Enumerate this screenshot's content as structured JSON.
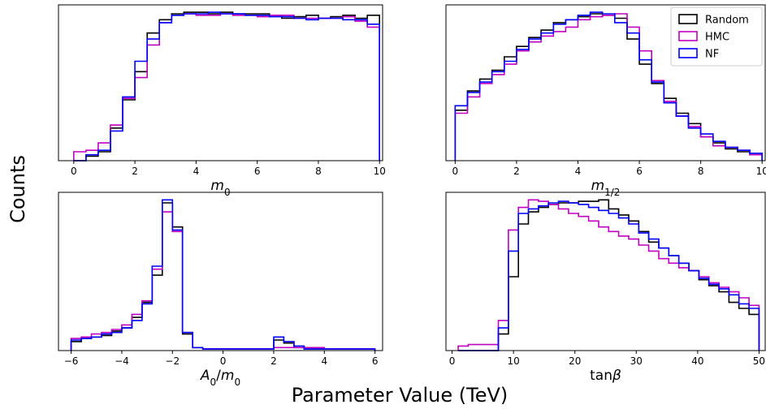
{
  "figure": {
    "ylabel": "Counts",
    "xlabel": "Parameter Value (TeV)"
  },
  "colors": {
    "Random": "#000000",
    "HMC": "#bf00bf",
    "NF": "#0000ff"
  },
  "legend": {
    "placement": "top-right",
    "entries": [
      "Random",
      "HMC",
      "NF"
    ]
  },
  "chart_data": [
    {
      "type": "histogram",
      "xlabel": "m0",
      "xlim": [
        -0.5,
        10.1
      ],
      "ylim": [
        0,
        1.0
      ],
      "xticks": [
        0,
        2,
        4,
        6,
        8,
        10
      ],
      "bin_edges": [
        0,
        0.4,
        0.8,
        1.2,
        1.6,
        2.0,
        2.4,
        2.8,
        3.2,
        3.6,
        4.0,
        4.4,
        4.8,
        5.2,
        5.6,
        6.0,
        6.4,
        6.8,
        7.2,
        7.6,
        8.0,
        8.4,
        8.8,
        9.2,
        9.6,
        10.0
      ],
      "series": [
        {
          "name": "Random",
          "values": [
            0.0,
            0.03,
            0.06,
            0.22,
            0.41,
            0.6,
            0.86,
            0.95,
            0.99,
            1.0,
            1.0,
            0.99,
            1.0,
            0.99,
            0.99,
            0.99,
            0.98,
            0.96,
            0.97,
            0.98,
            0.96,
            0.97,
            0.98,
            0.96,
            0.98
          ]
        },
        {
          "name": "HMC",
          "values": [
            0.06,
            0.07,
            0.12,
            0.24,
            0.42,
            0.56,
            0.78,
            0.93,
            0.98,
            0.99,
            0.98,
            0.98,
            0.99,
            0.98,
            0.98,
            0.97,
            0.98,
            0.98,
            0.96,
            0.96,
            0.96,
            0.96,
            0.97,
            0.94,
            0.9
          ]
        },
        {
          "name": "NF",
          "values": [
            0.0,
            0.04,
            0.07,
            0.2,
            0.43,
            0.67,
            0.82,
            0.93,
            0.98,
            0.99,
            0.99,
            1.0,
            0.99,
            0.99,
            0.98,
            0.98,
            0.97,
            0.97,
            0.96,
            0.95,
            0.96,
            0.96,
            0.95,
            0.95,
            0.92
          ]
        }
      ]
    },
    {
      "type": "histogram",
      "xlabel": "m1/2",
      "xlim": [
        -0.3,
        10.1
      ],
      "ylim": [
        0,
        1.0
      ],
      "xticks": [
        0,
        2,
        4,
        6,
        8,
        10
      ],
      "bin_edges": [
        0,
        0.4,
        0.8,
        1.2,
        1.6,
        2.0,
        2.4,
        2.8,
        3.2,
        3.6,
        4.0,
        4.4,
        4.8,
        5.2,
        5.6,
        6.0,
        6.4,
        6.8,
        7.2,
        7.6,
        8.0,
        8.4,
        8.8,
        9.2,
        9.6,
        10.0
      ],
      "series": [
        {
          "name": "Random",
          "values": [
            0.34,
            0.47,
            0.55,
            0.61,
            0.7,
            0.77,
            0.83,
            0.88,
            0.93,
            0.95,
            0.97,
            0.99,
            0.98,
            0.96,
            0.82,
            0.65,
            0.52,
            0.42,
            0.32,
            0.25,
            0.16,
            0.12,
            0.08,
            0.06,
            0.04
          ]
        },
        {
          "name": "HMC",
          "values": [
            0.32,
            0.43,
            0.52,
            0.58,
            0.65,
            0.74,
            0.8,
            0.84,
            0.87,
            0.9,
            0.95,
            0.97,
            0.98,
            0.99,
            0.9,
            0.74,
            0.54,
            0.4,
            0.3,
            0.23,
            0.16,
            0.1,
            0.09,
            0.07,
            0.04
          ]
        },
        {
          "name": "NF",
          "values": [
            0.37,
            0.46,
            0.53,
            0.6,
            0.67,
            0.75,
            0.82,
            0.86,
            0.92,
            0.95,
            0.98,
            1.0,
            0.99,
            0.93,
            0.86,
            0.68,
            0.53,
            0.39,
            0.3,
            0.22,
            0.18,
            0.13,
            0.09,
            0.07,
            0.05
          ]
        }
      ]
    },
    {
      "type": "histogram",
      "xlabel": "A0/m0",
      "xlim": [
        -6.5,
        6.3
      ],
      "ylim": [
        0,
        1.0
      ],
      "xticks": [
        -6,
        -4,
        -2,
        0,
        2,
        4,
        6
      ],
      "bin_edges": [
        -6.0,
        -5.6,
        -5.2,
        -4.8,
        -4.4,
        -4.0,
        -3.6,
        -3.2,
        -2.8,
        -2.4,
        -2.0,
        -1.6,
        -1.2,
        -0.8,
        -0.4,
        0.0,
        0.4,
        0.8,
        1.2,
        1.6,
        2.0,
        2.4,
        2.8,
        3.2,
        3.6,
        4.0,
        4.4,
        4.8,
        5.2,
        5.6,
        6.0
      ],
      "series": [
        {
          "name": "Random",
          "values": [
            0.06,
            0.08,
            0.09,
            0.1,
            0.13,
            0.15,
            0.22,
            0.32,
            0.5,
            0.98,
            0.82,
            0.11,
            0.02,
            0.01,
            0.01,
            0.01,
            0.01,
            0.01,
            0.01,
            0.01,
            0.07,
            0.05,
            0.02,
            0.01,
            0.01,
            0.01,
            0.01,
            0.01,
            0.01,
            0.01
          ]
        },
        {
          "name": "HMC",
          "values": [
            0.08,
            0.09,
            0.11,
            0.12,
            0.14,
            0.17,
            0.24,
            0.33,
            0.54,
            0.92,
            0.79,
            0.12,
            0.02,
            0.01,
            0.01,
            0.01,
            0.01,
            0.01,
            0.01,
            0.01,
            0.02,
            0.02,
            0.02,
            0.02,
            0.02,
            0.01,
            0.01,
            0.01,
            0.01,
            0.01
          ]
        },
        {
          "name": "NF",
          "values": [
            0.07,
            0.08,
            0.09,
            0.11,
            0.12,
            0.15,
            0.2,
            0.31,
            0.56,
            1.0,
            0.8,
            0.12,
            0.02,
            0.01,
            0.01,
            0.01,
            0.01,
            0.01,
            0.01,
            0.01,
            0.09,
            0.06,
            0.03,
            0.01,
            0.01,
            0.01,
            0.01,
            0.01,
            0.01,
            0.01
          ]
        }
      ]
    },
    {
      "type": "histogram",
      "xlabel": "tanβ",
      "xlim": [
        -1.0,
        51.0
      ],
      "ylim": [
        0,
        1.0
      ],
      "xticks": [
        0,
        10,
        20,
        30,
        40,
        50
      ],
      "bin_edges": [
        1,
        2.63,
        4.27,
        5.9,
        7.53,
        9.17,
        10.8,
        12.43,
        14.07,
        15.7,
        17.33,
        18.97,
        20.6,
        22.23,
        23.87,
        25.5,
        27.13,
        28.77,
        30.4,
        32.03,
        33.67,
        35.3,
        36.93,
        38.57,
        40.2,
        41.83,
        43.47,
        45.1,
        46.73,
        48.37,
        50.0
      ],
      "series": [
        {
          "name": "Random",
          "values": [
            0.0,
            0.0,
            0.0,
            0.0,
            0.11,
            0.49,
            0.84,
            0.92,
            0.95,
            0.97,
            0.98,
            0.98,
            0.99,
            0.99,
            1.0,
            0.94,
            0.9,
            0.86,
            0.79,
            0.72,
            0.68,
            0.63,
            0.58,
            0.53,
            0.47,
            0.43,
            0.39,
            0.32,
            0.28,
            0.24
          ]
        },
        {
          "name": "HMC",
          "values": [
            0.03,
            0.04,
            0.04,
            0.04,
            0.2,
            0.8,
            0.95,
            1.0,
            0.99,
            0.97,
            0.94,
            0.91,
            0.89,
            0.86,
            0.82,
            0.79,
            0.76,
            0.74,
            0.7,
            0.66,
            0.61,
            0.58,
            0.55,
            0.53,
            0.49,
            0.45,
            0.42,
            0.39,
            0.35,
            0.3
          ]
        },
        {
          "name": "NF",
          "values": [
            0.0,
            0.0,
            0.0,
            0.0,
            0.15,
            0.66,
            0.91,
            0.94,
            0.96,
            0.98,
            0.99,
            0.98,
            0.97,
            0.95,
            0.93,
            0.91,
            0.88,
            0.84,
            0.78,
            0.74,
            0.68,
            0.63,
            0.58,
            0.53,
            0.48,
            0.44,
            0.41,
            0.37,
            0.31,
            0.28
          ]
        }
      ]
    }
  ]
}
